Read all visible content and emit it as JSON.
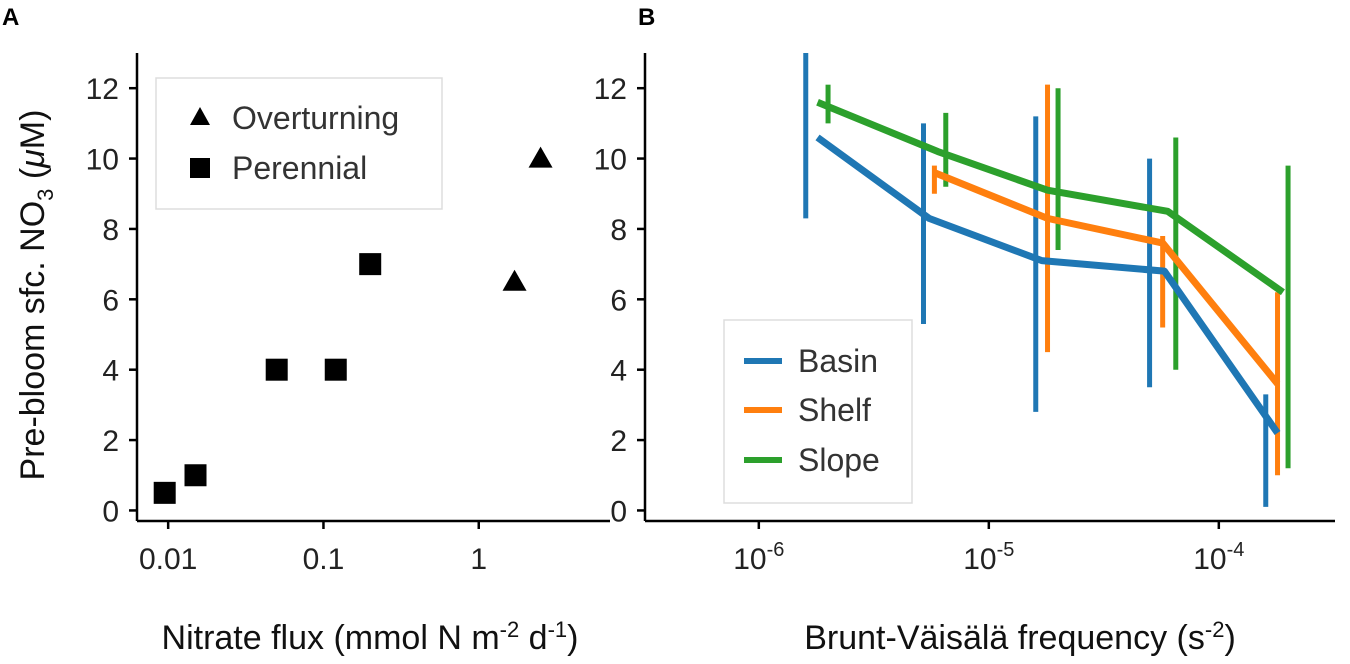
{
  "chart_data": [
    {
      "type": "scatter",
      "panel_label": "A",
      "xlabel": "Nitrate flux (mmol N m",
      "xlabel_sup1": "-2",
      "xlabel_mid": " d",
      "xlabel_sup2": "-1",
      "xlabel_end": ")",
      "ylabel_pre": "Pre-bloom sfc. NO",
      "ylabel_sub": "3",
      "ylabel_post": " (",
      "ylabel_mu": "μ",
      "ylabel_end": "M)",
      "xscale": "log",
      "xlim": [
        0.0063,
        7
      ],
      "ylim": [
        -0.3,
        13
      ],
      "xticks": [
        0.01,
        0.1,
        1
      ],
      "xtick_labels": [
        "0.01",
        "0.1",
        "1"
      ],
      "yticks": [
        0,
        2,
        4,
        6,
        8,
        10,
        12
      ],
      "ytick_labels": [
        "0",
        "2",
        "4",
        "6",
        "8",
        "10",
        "12"
      ],
      "series": [
        {
          "name": "Overturning",
          "marker": "triangle",
          "points": [
            {
              "x": 1.7,
              "y": 6.5
            },
            {
              "x": 2.5,
              "y": 10
            }
          ]
        },
        {
          "name": "Perennial",
          "marker": "square",
          "points": [
            {
              "x": 0.0095,
              "y": 0.5
            },
            {
              "x": 0.015,
              "y": 1.0
            },
            {
              "x": 0.05,
              "y": 4.0
            },
            {
              "x": 0.12,
              "y": 4.0
            },
            {
              "x": 0.2,
              "y": 7.0
            }
          ]
        }
      ],
      "legend_position": "top-left"
    },
    {
      "type": "line",
      "panel_label": "B",
      "xlabel": "Brunt-Väisälä frequency (s",
      "xlabel_sup": "-2",
      "xlabel_end": ")",
      "xscale": "log",
      "xlim": [
        3.2e-07,
        0.00032
      ],
      "ylim": [
        -0.3,
        13
      ],
      "xticks": [
        1e-06,
        1e-05,
        0.0001
      ],
      "xtick_base": "10",
      "xtick_exps": [
        "-6",
        "-5",
        "-4"
      ],
      "yticks": [
        0,
        2,
        4,
        6,
        8,
        10,
        12
      ],
      "ytick_labels": [
        "0",
        "2",
        "4",
        "6",
        "8",
        "10",
        "12"
      ],
      "series": [
        {
          "name": "Basin",
          "color": "#1f77b4",
          "x": [
            1.8e-06,
            5.5e-06,
            1.7e-05,
            5.8e-05,
            0.00018
          ],
          "y": [
            10.6,
            8.3,
            7.1,
            6.8,
            2.2
          ],
          "err_x": [
            1.6e-06,
            5.2e-06,
            1.6e-05,
            5e-05,
            0.00016
          ],
          "err_low": [
            8.3,
            5.3,
            2.8,
            3.5,
            0.1
          ],
          "err_high": [
            13.0,
            11.0,
            11.2,
            10.0,
            3.3
          ]
        },
        {
          "name": "Shelf",
          "color": "#ff7f0e",
          "x": [
            5.8e-06,
            1.8e-05,
            5.7e-05,
            0.00018
          ],
          "y": [
            9.6,
            8.3,
            7.6,
            3.6
          ],
          "err_x": [
            5.8e-06,
            1.8e-05,
            5.7e-05,
            0.00018
          ],
          "err_low": [
            9.0,
            4.5,
            5.2,
            1.0
          ],
          "err_high": [
            9.8,
            12.1,
            7.8,
            6.2
          ]
        },
        {
          "name": "Slope",
          "color": "#2ca02c",
          "x": [
            1.8e-06,
            6e-06,
            1.8e-05,
            6e-05,
            0.00019
          ],
          "y": [
            11.6,
            10.2,
            9.1,
            8.5,
            6.2
          ],
          "err_x": [
            2e-06,
            6.5e-06,
            2e-05,
            6.5e-05,
            0.0002
          ],
          "err_low": [
            11.0,
            9.2,
            7.4,
            4.0,
            1.2
          ],
          "err_high": [
            12.1,
            11.3,
            12.0,
            10.6,
            9.8
          ]
        }
      ],
      "legend_position": "bottom-left"
    }
  ]
}
